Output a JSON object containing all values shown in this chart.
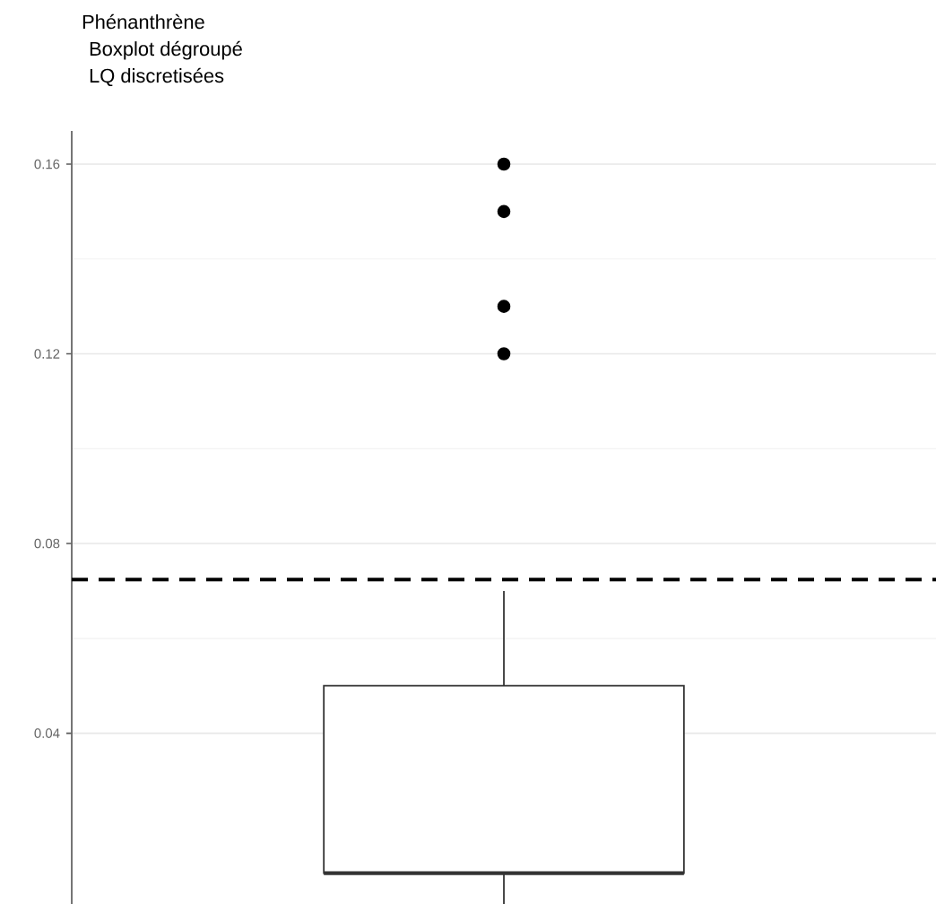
{
  "chart_data": {
    "type": "box",
    "title": "Phénanthrène",
    "subtitle": "Boxplot dégroupé",
    "annotations": [
      "LQ discretisées"
    ],
    "categories": [
      null
    ],
    "boxes": [
      {
        "low": 0.004,
        "q1": 0.0105,
        "median": 0.0105,
        "q3": 0.05,
        "high": 0.07,
        "outliers": [
          0.12,
          0.13,
          0.15,
          0.16
        ]
      }
    ],
    "ylim": [
      0.004,
      0.167
    ],
    "yticks": [
      0.04,
      0.08,
      0.12,
      0.16
    ],
    "ref_lines": [
      {
        "axis": "y",
        "value": 0.0724,
        "color": "#000000",
        "line_style": "dashed"
      }
    ],
    "grid": true,
    "marker": "circle",
    "tick_labels": "y"
  }
}
